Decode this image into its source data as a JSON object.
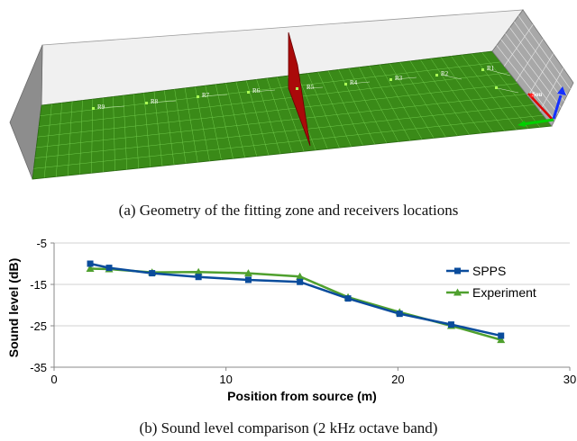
{
  "figure_a": {
    "caption": "(a)  Geometry of the fitting zone and receivers locations",
    "receiver_labels": [
      "R9",
      "R8",
      "R7",
      "R6",
      "R5",
      "R4",
      "R3",
      "R2",
      "R1"
    ],
    "source_label": "Sou",
    "colors": {
      "floor": "#3a8a18",
      "grid": "#6fc84a",
      "wall": "#8c8c8c",
      "ceiling": "#f0f0f0",
      "screen": "#aa0a0a",
      "source_axis": "#e00000",
      "axis_blue": "#1530ff",
      "axis_green": "#00d000"
    }
  },
  "figure_b": {
    "caption": "(b)  Sound level comparison (2 kHz octave band)"
  },
  "chart_data": {
    "type": "line",
    "title": "",
    "xlabel": "Position from source (m)",
    "ylabel": "Sound level (dB)",
    "xlim": [
      0,
      30
    ],
    "ylim": [
      -35,
      -5
    ],
    "xticks": [
      0,
      10,
      20,
      30
    ],
    "yticks": [
      -5,
      -15,
      -25,
      -35
    ],
    "grid": "horizontal",
    "legend_position": "right",
    "series": [
      {
        "name": "SPPS",
        "marker": "square",
        "color": "#0a4c9c",
        "x": [
          2.1,
          3.2,
          5.7,
          8.4,
          11.3,
          14.3,
          17.1,
          20.1,
          23.1,
          26.0
        ],
        "y": [
          -10.0,
          -11.0,
          -12.3,
          -13.2,
          -13.9,
          -14.4,
          -18.4,
          -22.1,
          -24.7,
          -27.4
        ]
      },
      {
        "name": "Experiment",
        "marker": "triangle",
        "color": "#4fa02e",
        "x": [
          2.1,
          3.2,
          5.7,
          8.4,
          11.3,
          14.3,
          17.1,
          20.1,
          23.1,
          26.0
        ],
        "y": [
          -11.2,
          -11.3,
          -12.1,
          -12.0,
          -12.3,
          -13.1,
          -18.1,
          -21.7,
          -25.0,
          -28.4
        ]
      }
    ]
  }
}
